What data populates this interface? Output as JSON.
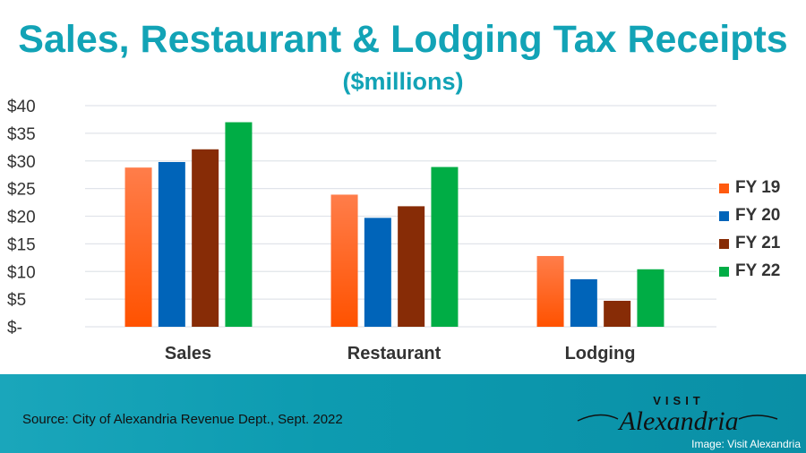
{
  "chart_data": {
    "type": "bar",
    "title": "Sales, Restaurant & Lodging Tax Receipts",
    "subtitle": "($millions)",
    "categories": [
      "Sales",
      "Restaurant",
      "Lodging"
    ],
    "series": [
      {
        "name": "FY 19",
        "color": "#ff5a0f",
        "values": [
          28.8,
          23.9,
          12.8
        ]
      },
      {
        "name": "FY 20",
        "color": "#0064b9",
        "values": [
          29.8,
          19.7,
          8.6
        ]
      },
      {
        "name": "FY 21",
        "color": "#872c06",
        "values": [
          32.1,
          21.8,
          4.7
        ]
      },
      {
        "name": "FY 22",
        "color": "#00ad45",
        "values": [
          37.0,
          28.9,
          10.4
        ]
      }
    ],
    "ylim": [
      0,
      40
    ],
    "yticks": [
      0,
      5,
      10,
      15,
      20,
      25,
      30,
      35,
      40
    ],
    "ytick_labels": [
      "$-",
      "$5",
      "$10",
      "$15",
      "$20",
      "$25",
      "$30",
      "$35",
      "$40"
    ],
    "grid": true,
    "legend": "right"
  },
  "footer": {
    "source": "Source: City of Alexandria Revenue Dept., Sept. 2022",
    "logo_text": "VISIT Alexandria",
    "credit": "Image: Visit Alexandria"
  }
}
